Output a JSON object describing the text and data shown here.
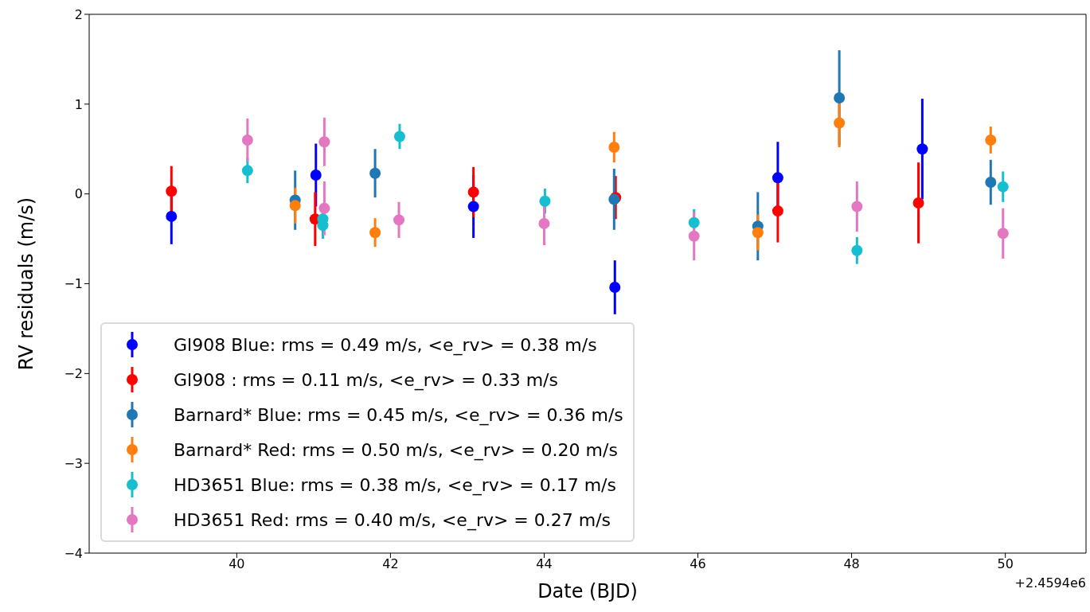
{
  "chart_data": {
    "type": "scatter",
    "xlabel": "Date (BJD)",
    "ylabel": "RV residuals (m/s)",
    "xlim": [
      38.08,
      51.05
    ],
    "xticks": [
      40,
      42,
      44,
      46,
      48,
      50
    ],
    "ylim": [
      -4,
      2
    ],
    "yticks": [
      {
        "value": -4,
        "label": "−4"
      },
      {
        "value": -3,
        "label": "−3"
      },
      {
        "value": -2,
        "label": "−2"
      },
      {
        "value": -1,
        "label": "−1"
      },
      0,
      1,
      2
    ],
    "grid": false,
    "legend": "bottom left",
    "marker": "circle",
    "annotations": [
      "+2.4594e6"
    ],
    "series": [
      {
        "name": "Gl908 Blue: rms = 0.49 m/s, <e_rv> = 0.38 m/s",
        "color": "#0000ff",
        "x": [
          39.15,
          41.03,
          43.08,
          44.92,
          47.04,
          48.92
        ],
        "values": [
          -0.25,
          0.21,
          -0.14,
          -1.04,
          0.18,
          0.5
        ],
        "errors": [
          0.31,
          0.35,
          0.35,
          0.3,
          0.4,
          0.56
        ]
      },
      {
        "name": "Gl908 : rms = 0.11 m/s, <e_rv> = 0.33 m/s",
        "color": "#ff0000",
        "x": [
          39.15,
          41.02,
          43.08,
          44.93,
          47.04,
          48.87
        ],
        "values": [
          0.03,
          -0.28,
          0.02,
          -0.04,
          -0.19,
          -0.1
        ],
        "errors": [
          0.28,
          0.3,
          0.28,
          0.24,
          0.35,
          0.45
        ]
      },
      {
        "name": "Barnard* Blue: rms = 0.45 m/s, <e_rv> = 0.36 m/s",
        "color": "#1f77b4",
        "x": [
          40.76,
          41.8,
          44.91,
          46.78,
          47.84,
          49.81
        ],
        "values": [
          -0.07,
          0.23,
          -0.06,
          -0.36,
          1.07,
          0.13
        ],
        "errors": [
          0.33,
          0.27,
          0.34,
          0.38,
          0.53,
          0.25
        ]
      },
      {
        "name": "Barnard* Red: rms = 0.50 m/s, <e_rv> = 0.20 m/s",
        "color": "#ff7f0e",
        "x": [
          40.76,
          41.8,
          44.91,
          46.78,
          47.84,
          49.81
        ],
        "values": [
          -0.13,
          -0.43,
          0.52,
          -0.43,
          0.79,
          0.6
        ],
        "errors": [
          0.2,
          0.16,
          0.17,
          0.2,
          0.27,
          0.15
        ]
      },
      {
        "name": "HD3651 Blue: rms = 0.38 m/s, <e_rv> = 0.17 m/s",
        "color": "#17becf",
        "x": [
          40.14,
          41.12,
          41.12,
          42.12,
          44.01,
          45.95,
          48.07,
          49.97
        ],
        "values": [
          0.26,
          -0.28,
          -0.35,
          0.64,
          -0.08,
          -0.32,
          -0.63,
          0.08
        ],
        "errors": [
          0.14,
          0.15,
          0.15,
          0.14,
          0.14,
          0.15,
          0.15,
          0.17
        ]
      },
      {
        "name": "HD3651 Red: rms = 0.40 m/s, <e_rv> = 0.27 m/s",
        "color": "#e377c2",
        "x": [
          40.14,
          41.14,
          41.14,
          42.11,
          44.0,
          45.95,
          48.07,
          49.97
        ],
        "values": [
          0.6,
          0.58,
          -0.16,
          -0.29,
          -0.33,
          -0.47,
          -0.14,
          -0.44
        ],
        "errors": [
          0.24,
          0.27,
          0.3,
          0.2,
          0.24,
          0.27,
          0.28,
          0.28
        ]
      }
    ]
  }
}
